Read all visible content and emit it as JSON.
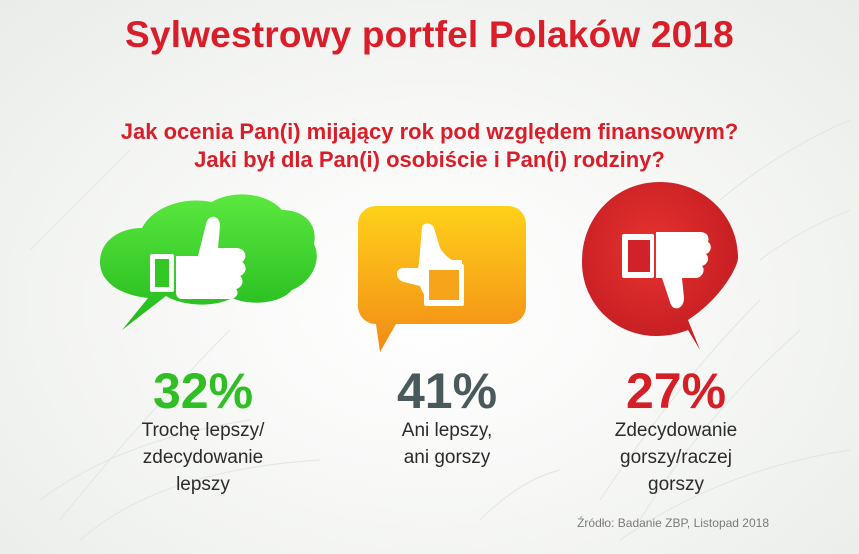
{
  "title": "Sylwestrowy portfel Polaków 2018",
  "question": {
    "line1": "Jak ocenia Pan(i) mijający rok pod względem finansowym?",
    "line2": "Jaki był dla Pan(i) osobiście i Pan(i) rodziny?"
  },
  "colors": {
    "title": "#d91e2a",
    "green": "#3fcf2a",
    "orange": "#f4a81c",
    "red": "#d41f26",
    "grey_text": "#4a5a5c"
  },
  "icons": [
    "thumbs-up-icon",
    "thumb-sideways-icon",
    "thumbs-down-icon"
  ],
  "source": "Źródło: Badanie ZBP, Listopad 2018",
  "chart_data": {
    "type": "table",
    "categories": [
      "Trochę lepszy/ zdecydowanie lepszy",
      "Ani lepszy, ani gorszy",
      "Zdecydowanie gorszy/raczej gorszy"
    ],
    "values": [
      32,
      41,
      27
    ],
    "unit": "%",
    "items": [
      {
        "percent": "32%",
        "value": 32,
        "label_lines": [
          "Trochę lepszy/",
          "zdecydowanie",
          "lepszy"
        ],
        "color": "#2fbf24",
        "icon": "thumbs-up-icon"
      },
      {
        "percent": "41%",
        "value": 41,
        "label_lines": [
          "Ani lepszy,",
          "ani gorszy"
        ],
        "color": "#4a5a5c",
        "icon": "thumb-sideways-icon"
      },
      {
        "percent": "27%",
        "value": 27,
        "label_lines": [
          "Zdecydowanie",
          "gorszy/raczej",
          "gorszy"
        ],
        "color": "#d41f26",
        "icon": "thumbs-down-icon"
      }
    ]
  }
}
